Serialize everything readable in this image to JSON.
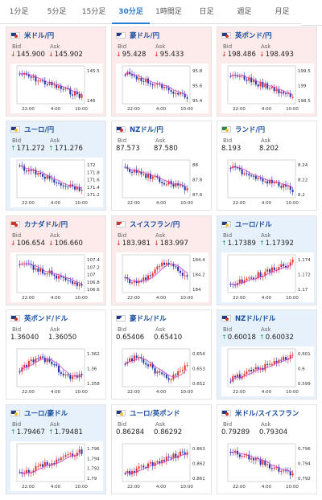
{
  "tabs": [
    "1分足",
    "5分足",
    "15分足",
    "30分足",
    "1時間足",
    "日足",
    "週足",
    "月足"
  ],
  "active_tab": 3,
  "bid_label": "Bid",
  "ask_label": "Ask",
  "time_labels": [
    "22:00",
    "4:00",
    "10:00"
  ],
  "colors": {
    "up_candle": "#e0302a",
    "down_candle": "#2233aa",
    "ma_line": "#cc44cc",
    "accent": "#2a7fd4"
  },
  "pairs": [
    {
      "name": "米ドル/円",
      "flag": "us",
      "bid": "145.900",
      "ask": "145.902",
      "dir": "down",
      "ticks": [
        "145.5",
        "146"
      ],
      "trend": "down"
    },
    {
      "name": "豪ドル/円",
      "flag": "au",
      "bid": "95.428",
      "ask": "95.433",
      "dir": "down",
      "ticks": [
        "95.8",
        "95.6",
        "95.4"
      ],
      "trend": "down"
    },
    {
      "name": "英ポンド/円",
      "flag": "gb",
      "bid": "198.486",
      "ask": "198.493",
      "dir": "down",
      "ticks": [
        "199.5",
        "199",
        "198.5"
      ],
      "trend": "down"
    },
    {
      "name": "ユーロ/円",
      "flag": "eu",
      "bid": "171.272",
      "ask": "171.276",
      "dir": "up",
      "ticks": [
        "172",
        "171.8",
        "171.6",
        "171.4",
        "171.2"
      ],
      "trend": "down"
    },
    {
      "name": "NZドル/円",
      "flag": "nz",
      "bid": "87.573",
      "ask": "87.580",
      "dir": "flat",
      "ticks": [
        "88",
        "87.8",
        "87.6"
      ],
      "trend": "down"
    },
    {
      "name": "ランド/円",
      "flag": "za",
      "bid": "8.193",
      "ask": "8.202",
      "dir": "flat",
      "ticks": [
        "8.24",
        "8.22",
        "8.2"
      ],
      "trend": "down"
    },
    {
      "name": "カナダドル/円",
      "flag": "ca",
      "bid": "106.654",
      "ask": "106.660",
      "dir": "down",
      "ticks": [
        "107.4",
        "107.2",
        "107",
        "106.8",
        "106.6"
      ],
      "trend": "down"
    },
    {
      "name": "スイスフラン/円",
      "flag": "ch",
      "bid": "183.981",
      "ask": "183.997",
      "dir": "down",
      "ticks": [
        "184.4",
        "184.2",
        "184"
      ],
      "trend": "mixed"
    },
    {
      "name": "ユーロ/ドル",
      "flag": "eu",
      "bid": "1.17389",
      "ask": "1.17392",
      "dir": "up",
      "ticks": [
        "1.174",
        "1.172",
        "1.17"
      ],
      "trend": "up"
    },
    {
      "name": "英ポンド/ドル",
      "flag": "gb",
      "bid": "1.36040",
      "ask": "1.36050",
      "dir": "flat",
      "ticks": [
        "1.362",
        "1.36",
        "1.358"
      ],
      "trend": "mixed"
    },
    {
      "name": "豪ドル/ドル",
      "flag": "au",
      "bid": "0.65406",
      "ask": "0.65410",
      "dir": "flat",
      "ticks": [
        "0.654",
        "0.653",
        "0.652"
      ],
      "trend": "mixed"
    },
    {
      "name": "NZドル/ドル",
      "flag": "nz",
      "bid": "0.60018",
      "ask": "0.60032",
      "dir": "up",
      "ticks": [
        "0.601",
        "0.6",
        "0.599"
      ],
      "trend": "up"
    },
    {
      "name": "ユーロ/豪ドル",
      "flag": "eu",
      "bid": "1.79467",
      "ask": "1.79481",
      "dir": "up",
      "ticks": [
        "1.796",
        "1.794",
        "1.792",
        "1.79"
      ],
      "trend": "up"
    },
    {
      "name": "ユーロ/英ポンド",
      "flag": "eu",
      "bid": "0.86284",
      "ask": "0.86292",
      "dir": "flat",
      "ticks": [
        "0.863",
        "0.862",
        "0.861"
      ],
      "trend": "up"
    },
    {
      "name": "米ドル/スイスフラン",
      "flag": "us",
      "bid": "0.79289",
      "ask": "0.79304",
      "dir": "flat",
      "ticks": [
        "0.796",
        "0.794",
        "0.792"
      ],
      "trend": "down"
    }
  ]
}
